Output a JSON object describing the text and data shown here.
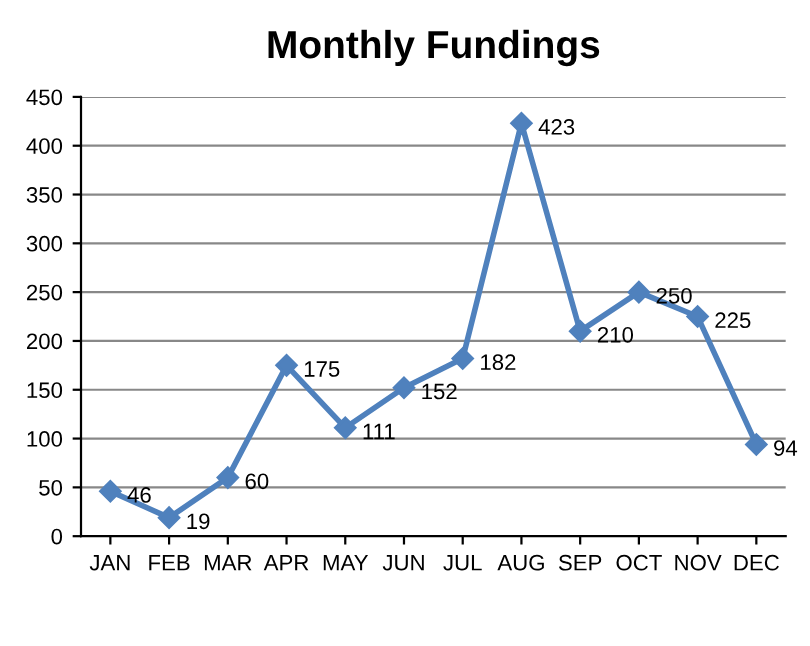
{
  "chart_data": {
    "type": "line",
    "title": "Monthly Fundings",
    "categories": [
      "JAN",
      "FEB",
      "MAR",
      "APR",
      "MAY",
      "JUN",
      "JUL",
      "AUG",
      "SEP",
      "OCT",
      "NOV",
      "DEC"
    ],
    "series": [
      {
        "color": "#4f81bd",
        "values": [
          46,
          19,
          60,
          175,
          111,
          152,
          182,
          423,
          210,
          250,
          225,
          94
        ]
      }
    ],
    "ylim": [
      0,
      450
    ],
    "yticks": [
      0,
      50,
      100,
      150,
      200,
      250,
      300,
      350,
      400,
      450
    ],
    "grid": "y",
    "marker": "diamond",
    "line_style": "solid",
    "data_labels": true,
    "legend": false
  }
}
